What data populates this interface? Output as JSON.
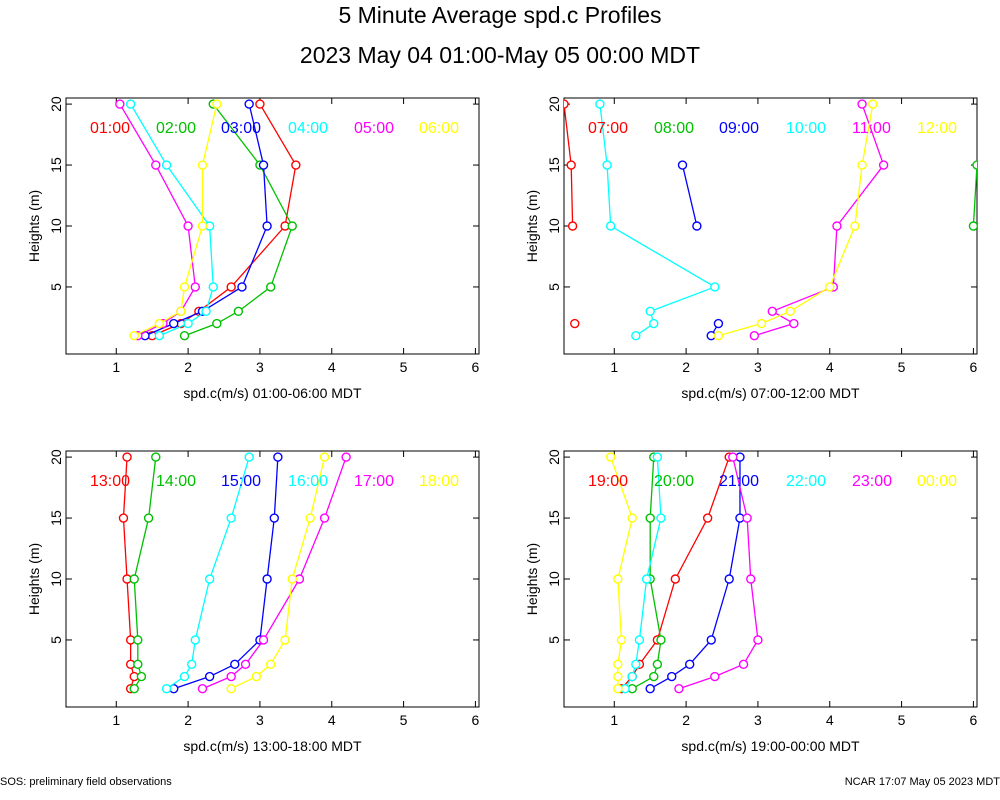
{
  "title": "5 Minute Average spd.c Profiles",
  "subtitle": "2023 May 04 01:00-May 05 00:00 MDT",
  "footer_left": "SOS: preliminary field observations",
  "footer_right": "NCAR 17:07 May 05 2023 MDT",
  "colors": [
    "#ff0000",
    "#00c000",
    "#0000ff",
    "#00ffff",
    "#ff00ff",
    "#ffff00"
  ],
  "chart_data": [
    {
      "type": "line",
      "xlabel": "spd.c(m/s) 01:00-06:00 MDT",
      "ylabel": "Heights (m)",
      "xlim": [
        0.3,
        6.05
      ],
      "ylim": [
        -0.5,
        20.5
      ],
      "xticks": [
        1,
        2,
        3,
        4,
        5,
        6
      ],
      "yticks": [
        5,
        10,
        15,
        20
      ],
      "heights": [
        1,
        2,
        3,
        5,
        10,
        15,
        20
      ],
      "series": [
        {
          "name": "01:00",
          "values": [
            1.5,
            1.9,
            2.15,
            2.6,
            3.35,
            3.5,
            3.0
          ]
        },
        {
          "name": "02:00",
          "values": [
            1.95,
            2.4,
            2.7,
            3.15,
            3.45,
            3.0,
            2.35
          ]
        },
        {
          "name": "03:00",
          "values": [
            1.4,
            1.8,
            2.2,
            2.75,
            3.1,
            3.05,
            2.85
          ]
        },
        {
          "name": "04:00",
          "values": [
            1.6,
            2.0,
            2.25,
            2.35,
            2.3,
            1.7,
            1.2
          ]
        },
        {
          "name": "05:00",
          "values": [
            1.3,
            1.65,
            1.9,
            2.1,
            2.0,
            1.55,
            1.05
          ]
        },
        {
          "name": "06:00",
          "values": [
            1.25,
            1.6,
            1.9,
            1.95,
            2.2,
            2.2,
            2.4
          ]
        }
      ]
    },
    {
      "type": "line",
      "xlabel": "spd.c(m/s) 07:00-12:00 MDT",
      "ylabel": "Heights (m)",
      "xlim": [
        0.3,
        6.05
      ],
      "ylim": [
        -0.5,
        20.5
      ],
      "xticks": [
        1,
        2,
        3,
        4,
        5,
        6
      ],
      "yticks": [
        5,
        10,
        15,
        20
      ],
      "heights": [
        1,
        2,
        3,
        5,
        10,
        15,
        20
      ],
      "series": [
        {
          "name": "07:00",
          "values": [
            null,
            0.45,
            null,
            null,
            0.42,
            0.4,
            0.3
          ]
        },
        {
          "name": "08:00",
          "values": [
            null,
            null,
            null,
            null,
            6.0,
            6.05,
            null
          ]
        },
        {
          "name": "09:00",
          "values": [
            2.35,
            2.45,
            null,
            null,
            2.15,
            1.95,
            null
          ]
        },
        {
          "name": "10:00",
          "values": [
            1.3,
            1.55,
            1.5,
            2.4,
            0.95,
            0.9,
            0.8
          ]
        },
        {
          "name": "11:00",
          "values": [
            2.95,
            3.5,
            3.2,
            4.05,
            4.1,
            4.75,
            4.45
          ]
        },
        {
          "name": "12:00",
          "values": [
            2.45,
            3.05,
            3.45,
            4.0,
            4.35,
            4.45,
            4.6
          ]
        }
      ]
    },
    {
      "type": "line",
      "xlabel": "spd.c(m/s) 13:00-18:00 MDT",
      "ylabel": "Heights (m)",
      "xlim": [
        0.3,
        6.05
      ],
      "ylim": [
        -0.5,
        20.5
      ],
      "xticks": [
        1,
        2,
        3,
        4,
        5,
        6
      ],
      "yticks": [
        5,
        10,
        15,
        20
      ],
      "heights": [
        1,
        2,
        3,
        5,
        10,
        15,
        20
      ],
      "series": [
        {
          "name": "13:00",
          "values": [
            1.2,
            1.25,
            1.2,
            1.2,
            1.15,
            1.1,
            1.15
          ]
        },
        {
          "name": "14:00",
          "values": [
            1.25,
            1.35,
            1.3,
            1.3,
            1.25,
            1.45,
            1.55
          ]
        },
        {
          "name": "15:00",
          "values": [
            1.8,
            2.3,
            2.65,
            3.0,
            3.1,
            3.2,
            3.25
          ]
        },
        {
          "name": "16:00",
          "values": [
            1.7,
            1.95,
            2.05,
            2.1,
            2.3,
            2.6,
            2.85
          ]
        },
        {
          "name": "17:00",
          "values": [
            2.2,
            2.6,
            2.8,
            3.05,
            3.55,
            3.9,
            4.2
          ]
        },
        {
          "name": "18:00",
          "values": [
            2.6,
            2.95,
            3.15,
            3.35,
            3.45,
            3.7,
            3.9
          ]
        }
      ]
    },
    {
      "type": "line",
      "xlabel": "spd.c(m/s) 19:00-00:00 MDT",
      "ylabel": "Heights (m)",
      "xlim": [
        0.3,
        6.05
      ],
      "ylim": [
        -0.5,
        20.5
      ],
      "xticks": [
        1,
        2,
        3,
        4,
        5,
        6
      ],
      "yticks": [
        5,
        10,
        15,
        20
      ],
      "heights": [
        1,
        2,
        3,
        5,
        10,
        15,
        20
      ],
      "series": [
        {
          "name": "19:00",
          "values": [
            1.1,
            1.25,
            1.35,
            1.6,
            1.85,
            2.3,
            2.6
          ]
        },
        {
          "name": "20:00",
          "values": [
            1.25,
            1.55,
            1.6,
            1.65,
            1.5,
            1.5,
            1.55
          ]
        },
        {
          "name": "21:00",
          "values": [
            1.5,
            1.8,
            2.05,
            2.35,
            2.6,
            2.75,
            2.75
          ]
        },
        {
          "name": "22:00",
          "values": [
            1.15,
            1.25,
            1.3,
            1.35,
            1.45,
            1.65,
            1.6
          ]
        },
        {
          "name": "23:00",
          "values": [
            1.9,
            2.4,
            2.8,
            3.0,
            2.9,
            2.85,
            2.65
          ]
        },
        {
          "name": "00:00",
          "values": [
            1.05,
            1.05,
            1.05,
            1.1,
            1.05,
            1.25,
            0.95
          ]
        }
      ]
    }
  ]
}
